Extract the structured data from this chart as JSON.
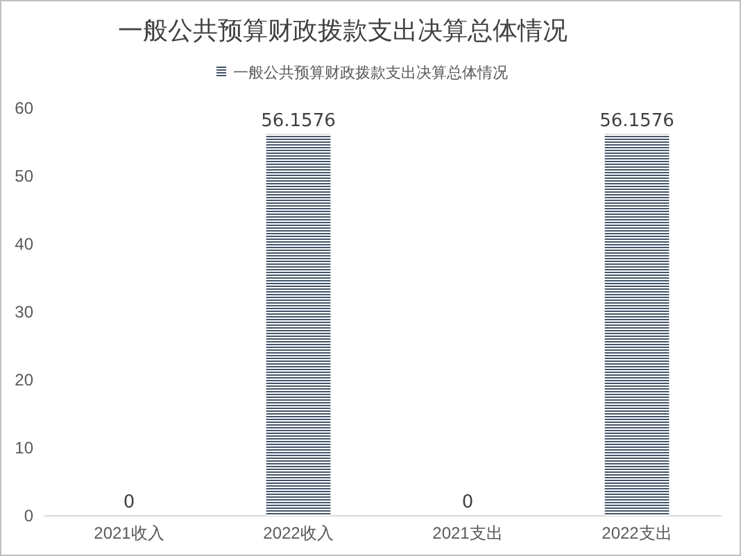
{
  "chart_data": {
    "type": "bar",
    "title": "一般公共预算财政拨款支出决算总体情况",
    "categories": [
      "2021收入",
      "2022收入",
      "2021支出",
      "2022支出"
    ],
    "series": [
      {
        "name": "一般公共预算财政拨款支出决算总体情况",
        "color": "#44546a",
        "values": [
          0,
          56.1576,
          0,
          56.1576
        ]
      }
    ],
    "ylim": [
      0,
      60
    ],
    "yticks": [
      0,
      10,
      20,
      30,
      40,
      50,
      60
    ],
    "grid": false,
    "legend": "top",
    "data_labels": true
  }
}
